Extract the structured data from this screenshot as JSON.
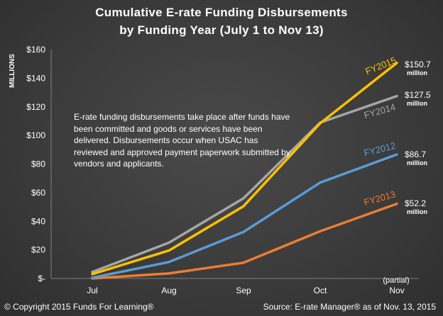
{
  "chart_data": {
    "type": "line",
    "title": "Cumulative E-rate Funding Disbursements",
    "subtitle": "by Funding Year (July 1 to Nov 13)",
    "ylabel": "MILLIONS",
    "ylim": [
      0,
      160
    ],
    "yticks": [
      0,
      20,
      40,
      60,
      80,
      100,
      120,
      140,
      160
    ],
    "ytick_labels": [
      "$-",
      "$20",
      "$40",
      "$60",
      "$80",
      "$100",
      "$120",
      "$140",
      "$160"
    ],
    "categories": [
      "Jul",
      "Aug",
      "Sep",
      "Oct",
      "Nov"
    ],
    "category_note": "(partial)",
    "grid": false,
    "series": [
      {
        "name": "FY2015",
        "color": "#ffc000",
        "values": [
          3,
          19.5,
          50.5,
          108.5,
          150.7
        ]
      },
      {
        "name": "FY2014",
        "color": "#a6a6a6",
        "values": [
          4.5,
          25,
          56,
          109,
          127.5
        ]
      },
      {
        "name": "FY2012",
        "color": "#5b9bd5",
        "values": [
          0.5,
          11.5,
          32.5,
          67,
          86.7
        ]
      },
      {
        "name": "FY2013",
        "color": "#ed7d31",
        "values": [
          0,
          3.5,
          11,
          33,
          52.2
        ]
      }
    ],
    "end_labels": [
      {
        "series": "FY2015",
        "value": "$150.7",
        "unit": "million"
      },
      {
        "series": "FY2014",
        "value": "$127.5",
        "unit": "million"
      },
      {
        "series": "FY2012",
        "value": "$86.7",
        "unit": "million"
      },
      {
        "series": "FY2013",
        "value": "$52.2",
        "unit": "million"
      }
    ],
    "annotation": "E-rate funding disbursements take place after funds have been committed and goods or services have been delivered. Disbursements occur when USAC has reviewed and approved payment paperwork submitted by vendors and applicants."
  },
  "footer": {
    "copyright": "© Copyright 2015 Funds For Learning®",
    "source": "Source: E-rate Manager® as of Nov. 13, 2015"
  }
}
